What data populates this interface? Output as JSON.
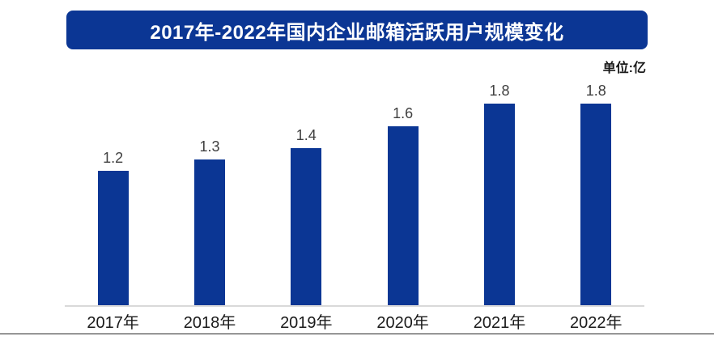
{
  "title": "2017年-2022年国内企业邮箱活跃用户规模变化",
  "unit_label": "单位:亿",
  "colors": {
    "banner_bg": "#0b3694",
    "banner_text": "#ffffff",
    "bar": "#0b3694",
    "value_label": "#404040",
    "year_label": "#1a1a1a",
    "axis_line": "#d9d9d9",
    "bottom_line": "#262626",
    "background": "#ffffff"
  },
  "chart_data": {
    "type": "bar",
    "title": "2017年-2022年国内企业邮箱活跃用户规模变化",
    "unit": "亿",
    "categories": [
      "2017年",
      "2018年",
      "2019年",
      "2020年",
      "2021年",
      "2022年"
    ],
    "values": [
      1.2,
      1.3,
      1.4,
      1.6,
      1.8,
      1.8
    ],
    "value_labels": [
      "1.2",
      "1.3",
      "1.4",
      "1.6",
      "1.8",
      "1.8"
    ],
    "ylim": [
      0,
      1.8
    ],
    "grid": false,
    "legend": false,
    "data_labels": true,
    "xlabel": "",
    "ylabel": ""
  }
}
